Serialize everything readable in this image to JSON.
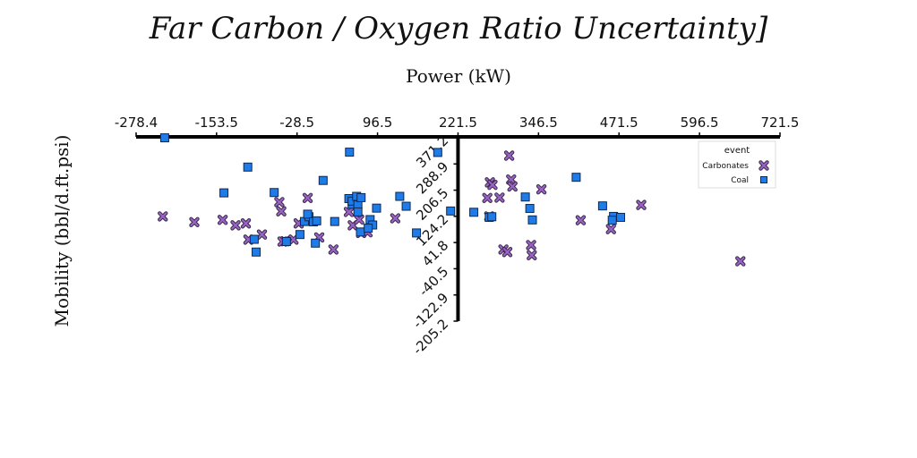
{
  "chart_data": {
    "type": "scatter",
    "title": "Far Carbon / Oxygen Ratio Uncertainty]",
    "xlabel": "Power (kW)",
    "ylabel": "Mobility (bbl/d.ft.psi)",
    "xlim": [
      -278.4,
      721.5
    ],
    "ylim": [
      -205.2,
      371.2
    ],
    "x_ticks": [
      "-278.4",
      "-153.5",
      "-28.5",
      "96.5",
      "221.5",
      "346.5",
      "471.5",
      "596.5",
      "721.5"
    ],
    "y_ticks": [
      "-205.2",
      "-122.9",
      "-40.5",
      "41.8",
      "124.2",
      "206.5",
      "288.9",
      "371.2"
    ],
    "grid": false,
    "legend": {
      "title": "event",
      "position": "top-right"
    },
    "colors": {
      "Carbonates": "#9a63c4",
      "Coal": "#1f7be8"
    },
    "series": [
      {
        "name": "Carbonates",
        "marker": "x",
        "points": [
          [
            -237,
            124
          ],
          [
            -188,
            106
          ],
          [
            -144,
            113
          ],
          [
            -124,
            96
          ],
          [
            -104,
            51
          ],
          [
            -83,
            67
          ],
          [
            -56,
            169
          ],
          [
            -53,
            140
          ],
          [
            -47,
            46
          ],
          [
            -34,
            51
          ],
          [
            -26,
            102
          ],
          [
            -12,
            182
          ],
          [
            6,
            58
          ],
          [
            28,
            20
          ],
          [
            58,
            96
          ],
          [
            81,
            74
          ],
          [
            -108,
            102
          ],
          [
            -51,
            45
          ],
          [
            271,
            231
          ],
          [
            267,
            182
          ],
          [
            270,
            124
          ],
          [
            275,
            223
          ],
          [
            286,
            183
          ],
          [
            304,
            240
          ],
          [
            301,
            315
          ],
          [
            306,
            218
          ],
          [
            292,
            20
          ],
          [
            298,
            12
          ],
          [
            335,
            34
          ],
          [
            336,
            2
          ],
          [
            351,
            209
          ],
          [
            412,
            112
          ],
          [
            459,
            84
          ],
          [
            506,
            160
          ],
          [
            660,
            -17
          ],
          [
            52,
            138
          ],
          [
            124,
            118
          ],
          [
            68,
            114
          ],
          [
            71,
            72
          ]
        ]
      },
      {
        "name": "Coal",
        "marker": "square",
        "points": [
          [
            -234,
            371
          ],
          [
            -142,
            198
          ],
          [
            -105,
            279
          ],
          [
            -95,
            52
          ],
          [
            -92,
            12
          ],
          [
            -64,
            199
          ],
          [
            -45,
            45
          ],
          [
            -24,
            67
          ],
          [
            -17,
            108
          ],
          [
            -10,
            123
          ],
          [
            -12,
            131
          ],
          [
            -3,
            107
          ],
          [
            0,
            40
          ],
          [
            12,
            237
          ],
          [
            2,
            110
          ],
          [
            30,
            108
          ],
          [
            52,
            180
          ],
          [
            57,
            162
          ],
          [
            57,
            172
          ],
          [
            66,
            160
          ],
          [
            70,
            75
          ],
          [
            64,
            187
          ],
          [
            71,
            183
          ],
          [
            66,
            138
          ],
          [
            53,
            326
          ],
          [
            85,
            114
          ],
          [
            89,
            97
          ],
          [
            131,
            187
          ],
          [
            141,
            156
          ],
          [
            157,
            72
          ],
          [
            190,
            325
          ],
          [
            210,
            141
          ],
          [
            270,
            121
          ],
          [
            246,
            137
          ],
          [
            274,
            123
          ],
          [
            326,
            185
          ],
          [
            333,
            149
          ],
          [
            337,
            113
          ],
          [
            405,
            247
          ],
          [
            446,
            157
          ],
          [
            463,
            124
          ],
          [
            461,
            112
          ],
          [
            474,
            121
          ],
          [
            95,
            150
          ],
          [
            82,
            87
          ]
        ]
      }
    ]
  }
}
